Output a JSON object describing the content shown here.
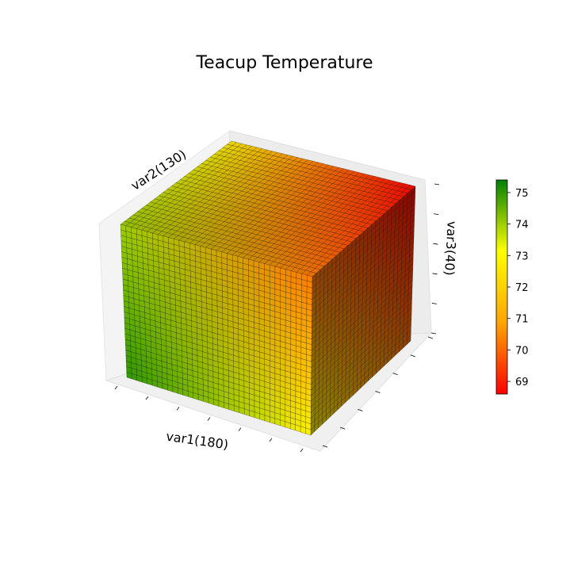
{
  "chart_data": {
    "type": "3d-voxel-cube",
    "title": "Teacup Temperature",
    "axes": [
      {
        "key": "x",
        "label": "var1(180)"
      },
      {
        "key": "y",
        "label": "var2(130)"
      },
      {
        "key": "z",
        "label": "var3(40)"
      }
    ],
    "grid": true,
    "colorbar": {
      "range": [
        68.6,
        75.4
      ],
      "ticks": [
        69,
        70,
        71,
        72,
        73,
        74,
        75
      ],
      "colors": [
        "#ff0000",
        "#ffa500",
        "#ffff00",
        "#008000"
      ],
      "placement": "right"
    },
    "corner_values": {
      "front_bottom_left": 75.0,
      "front_bottom_right": 72.8,
      "front_top_left": 74.0,
      "front_top_right": 70.3,
      "back_top_left": 72.6,
      "back_top_right": 68.7
    }
  }
}
